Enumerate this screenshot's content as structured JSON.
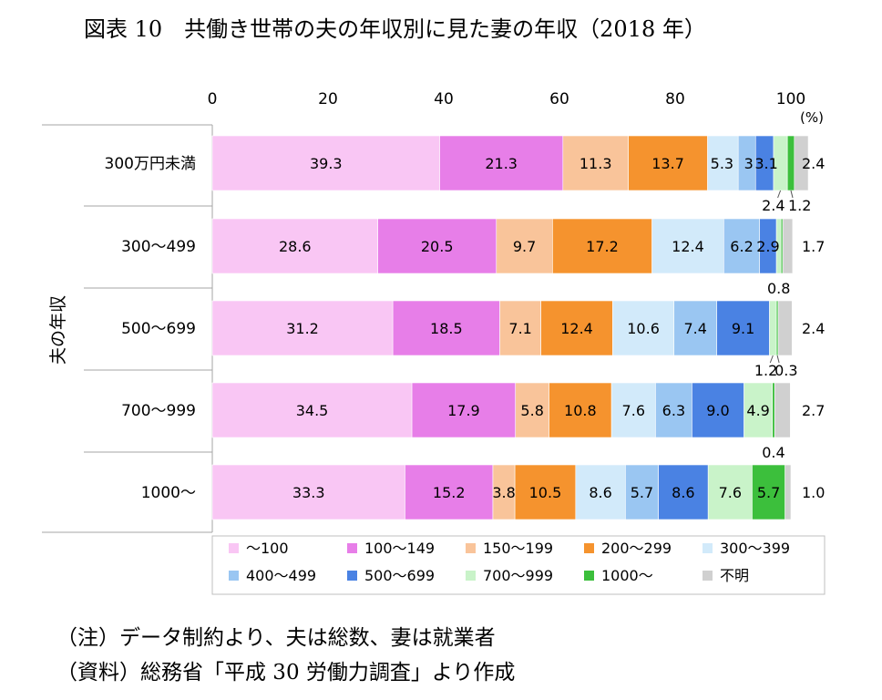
{
  "title": "図表 10　共働き世帯の夫の年収別に見た妻の年収（2018 年）",
  "notes": {
    "note1": "（注）データ制約より、夫は総数、妻は就業者",
    "note2": "（資料）総務省「平成 30 労働力調査」より作成"
  },
  "chart_data": {
    "type": "bar",
    "orientation": "horizontal",
    "stacked": true,
    "title": "",
    "xlim": [
      0,
      100
    ],
    "xticks": [
      "0",
      "20",
      "40",
      "60",
      "80",
      "100"
    ],
    "xunit": "(%)",
    "ylabel": "夫の年収",
    "categories": [
      "300万円未満",
      "300～499",
      "500～699",
      "700～999",
      "1000～"
    ],
    "series": [
      {
        "name": "～100",
        "color": "#f9c6f4",
        "values": [
          39.3,
          28.6,
          31.2,
          34.5,
          33.3
        ]
      },
      {
        "name": "100～149",
        "color": "#e77ee8",
        "values": [
          21.3,
          20.5,
          18.5,
          17.9,
          15.2
        ]
      },
      {
        "name": "150～199",
        "color": "#f9c49a",
        "values": [
          11.3,
          9.7,
          7.1,
          5.8,
          3.8
        ]
      },
      {
        "name": "200～299",
        "color": "#f5932e",
        "values": [
          13.7,
          17.2,
          12.4,
          10.8,
          10.5
        ]
      },
      {
        "name": "300～399",
        "color": "#d2eafa",
        "values": [
          5.3,
          12.4,
          10.6,
          7.6,
          8.6
        ]
      },
      {
        "name": "400～499",
        "color": "#9ac6f2",
        "values": [
          3.0,
          6.2,
          7.4,
          6.3,
          5.7
        ]
      },
      {
        "name": "500～699",
        "color": "#4a82e3",
        "values": [
          3.1,
          2.9,
          9.1,
          9.0,
          8.6
        ]
      },
      {
        "name": "700～999",
        "color": "#c9f3c9",
        "values": [
          2.4,
          0.8,
          1.2,
          4.9,
          7.6
        ]
      },
      {
        "name": "1000～",
        "color": "#3cbf3c",
        "values": [
          1.2,
          0.3,
          0.3,
          0.4,
          5.7
        ]
      },
      {
        "name": "不明",
        "color": "#d0d0d0",
        "values": [
          2.4,
          1.7,
          2.4,
          2.7,
          1.0
        ]
      }
    ],
    "labels": [
      {
        "row": 0,
        "seg": 0,
        "text": "39.3"
      },
      {
        "row": 0,
        "seg": 1,
        "text": "21.3"
      },
      {
        "row": 0,
        "seg": 2,
        "text": "11.3"
      },
      {
        "row": 0,
        "seg": 3,
        "text": "13.7"
      },
      {
        "row": 0,
        "seg": 4,
        "text": "5.3",
        "pos": "squeeze-left"
      },
      {
        "row": 0,
        "seg": 5,
        "text": "3",
        "pos": "squeeze-mid"
      },
      {
        "row": 0,
        "seg": 6,
        "text": "3.1",
        "pos": "squeeze-right"
      },
      {
        "row": 0,
        "seg": 7,
        "text": "2.4",
        "pos": "below-left"
      },
      {
        "row": 0,
        "seg": 8,
        "text": "1.2",
        "pos": "below-right"
      },
      {
        "row": 0,
        "seg": 9,
        "text": "2.4",
        "pos": "outside"
      },
      {
        "row": 1,
        "seg": 0,
        "text": "28.6"
      },
      {
        "row": 1,
        "seg": 1,
        "text": "20.5"
      },
      {
        "row": 1,
        "seg": 2,
        "text": "9.7"
      },
      {
        "row": 1,
        "seg": 3,
        "text": "17.2"
      },
      {
        "row": 1,
        "seg": 4,
        "text": "12.4"
      },
      {
        "row": 1,
        "seg": 5,
        "text": "6.2"
      },
      {
        "row": 1,
        "seg": 6,
        "text": "2.9"
      },
      {
        "row": 1,
        "seg": 7,
        "text": "0.8",
        "pos": "below-center"
      },
      {
        "row": 1,
        "seg": 9,
        "text": "1.7",
        "pos": "outside"
      },
      {
        "row": 2,
        "seg": 0,
        "text": "31.2"
      },
      {
        "row": 2,
        "seg": 1,
        "text": "18.5"
      },
      {
        "row": 2,
        "seg": 2,
        "text": "7.1"
      },
      {
        "row": 2,
        "seg": 3,
        "text": "12.4"
      },
      {
        "row": 2,
        "seg": 4,
        "text": "10.6"
      },
      {
        "row": 2,
        "seg": 5,
        "text": "7.4"
      },
      {
        "row": 2,
        "seg": 6,
        "text": "9.1"
      },
      {
        "row": 2,
        "seg": 7,
        "text": "1.2",
        "pos": "below-left"
      },
      {
        "row": 2,
        "seg": 8,
        "text": "0.3",
        "pos": "below-right"
      },
      {
        "row": 2,
        "seg": 9,
        "text": "2.4",
        "pos": "outside"
      },
      {
        "row": 3,
        "seg": 0,
        "text": "34.5"
      },
      {
        "row": 3,
        "seg": 1,
        "text": "17.9"
      },
      {
        "row": 3,
        "seg": 2,
        "text": "5.8"
      },
      {
        "row": 3,
        "seg": 3,
        "text": "10.8"
      },
      {
        "row": 3,
        "seg": 4,
        "text": "7.6"
      },
      {
        "row": 3,
        "seg": 5,
        "text": "6.3"
      },
      {
        "row": 3,
        "seg": 6,
        "text": "9.0"
      },
      {
        "row": 3,
        "seg": 7,
        "text": "4.9"
      },
      {
        "row": 3,
        "seg": 8,
        "text": "0.4",
        "pos": "below-center"
      },
      {
        "row": 3,
        "seg": 9,
        "text": "2.7",
        "pos": "outside"
      },
      {
        "row": 4,
        "seg": 0,
        "text": "33.3"
      },
      {
        "row": 4,
        "seg": 1,
        "text": "15.2"
      },
      {
        "row": 4,
        "seg": 2,
        "text": "3.8"
      },
      {
        "row": 4,
        "seg": 3,
        "text": "10.5"
      },
      {
        "row": 4,
        "seg": 4,
        "text": "8.6"
      },
      {
        "row": 4,
        "seg": 5,
        "text": "5.7"
      },
      {
        "row": 4,
        "seg": 6,
        "text": "8.6"
      },
      {
        "row": 4,
        "seg": 7,
        "text": "7.6"
      },
      {
        "row": 4,
        "seg": 8,
        "text": "5.7"
      },
      {
        "row": 4,
        "seg": 9,
        "text": "1.0",
        "pos": "outside"
      }
    ],
    "legend": {
      "position": "bottom",
      "columns": 5
    },
    "grid": false
  }
}
